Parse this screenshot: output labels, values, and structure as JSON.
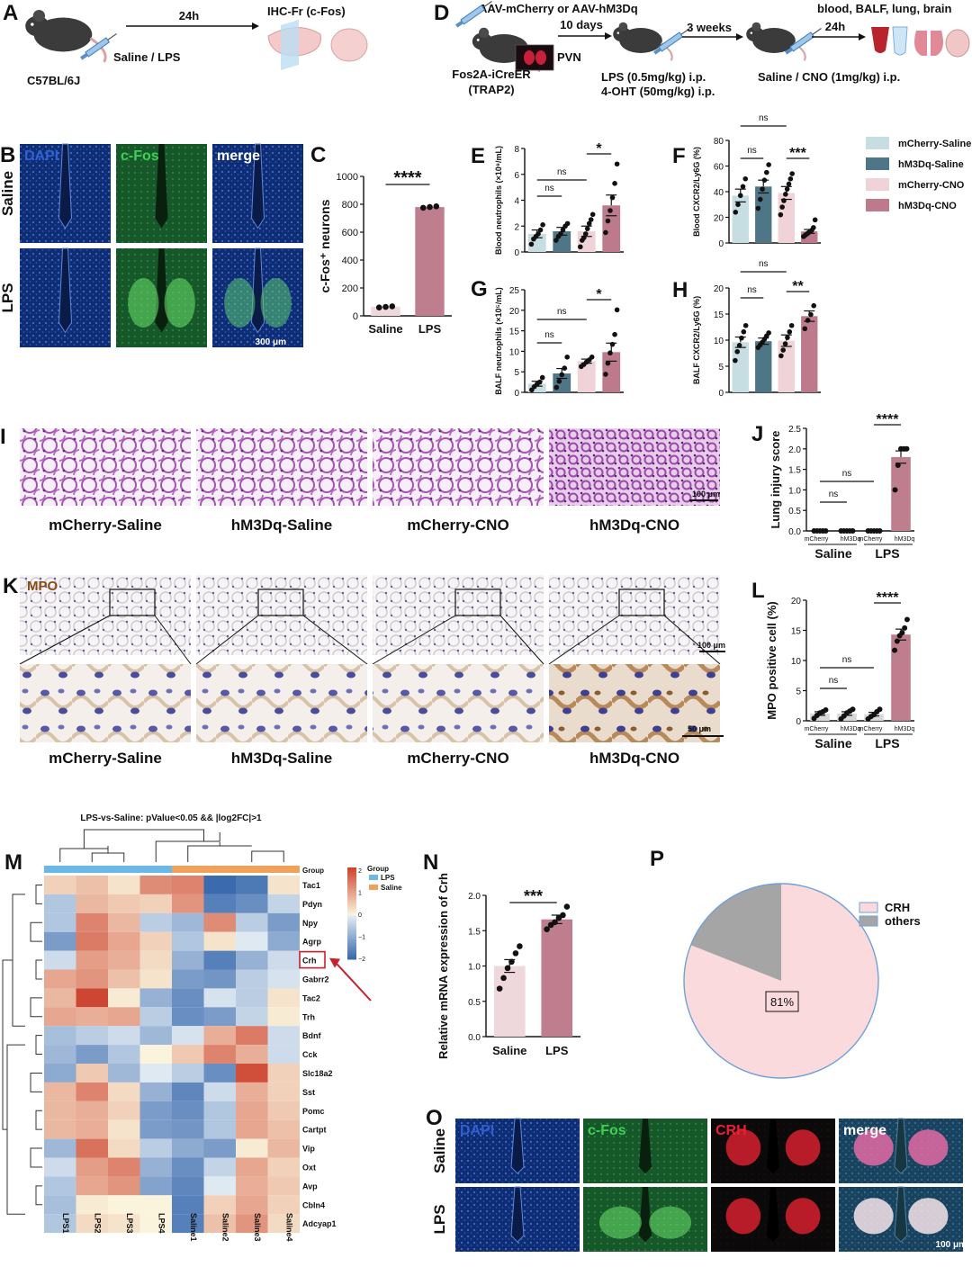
{
  "colors": {
    "mCherry_Saline": "#c6dde2",
    "hM3Dq_Saline": "#4e7687",
    "mCherry_CNO": "#efd3d8",
    "hM3Dq_CNO": "#bc7a8c",
    "saline_bar": "#eed8db",
    "lps_bar": "#bf7e8e",
    "micro_dapi": "#1a3f8f",
    "micro_cfos": "#1f6b2c",
    "micro_crh": "#b0121c",
    "he_stain": "#c084c4",
    "ihc_bg": "#ede6de",
    "pie_crh": "#fadadd",
    "pie_others": "#a5a5a5",
    "pie_border": "#6fa1d8",
    "arrow_red": "#c8202c"
  },
  "panels": {
    "A": {
      "label": "A",
      "timepoint": "24h",
      "strain": "C57BL/6J",
      "treatment": "Saline / LPS",
      "assay": "IHC-Fr (c-Fos)"
    },
    "D": {
      "label": "D",
      "virus": "AAV-mCherry or AAV-hM3Dq",
      "days": "10 days",
      "region": "PVN",
      "mouse_line_1": "Fos2A-iCreER",
      "mouse_line_2": "(TRAP2)",
      "weeks": "3 weeks",
      "tp": "24h",
      "readouts": "blood, BALF, lung, brain",
      "lps": "LPS (0.5mg/kg) i.p.",
      "oht": "4-OHT (50mg/kg) i.p.",
      "cno": "Saline / CNO (1mg/kg) i.p."
    },
    "B": {
      "label": "B",
      "cols": [
        "DAPI",
        "c-Fos",
        "merge"
      ],
      "rows": [
        "Saline",
        "LPS"
      ],
      "scale": "300 μm"
    },
    "I": {
      "label": "I",
      "captions": [
        "mCherry-Saline",
        "hM3Dq-Saline",
        "mCherry-CNO",
        "hM3Dq-CNO"
      ],
      "scale": "100 μm"
    },
    "K": {
      "label": "K",
      "stain": "MPO",
      "captions": [
        "mCherry-Saline",
        "hM3Dq-Saline",
        "mCherry-CNO",
        "hM3Dq-CNO"
      ],
      "scale_top": "100 μm",
      "scale_bottom": "50 μm"
    },
    "M": {
      "label": "M",
      "title": "LPS-vs-Saline: pValue<0.05 && |log2FC|>1",
      "genes": [
        "Tac1",
        "Pdyn",
        "Npy",
        "Agrp",
        "Crh",
        "Gabrr2",
        "Tac2",
        "Trh",
        "Bdnf",
        "Cck",
        "Slc18a2",
        "Sst",
        "Pomc",
        "Cartpt",
        "Vip",
        "Oxt",
        "Avp",
        "Cbln4",
        "Adcyap1"
      ],
      "samples": [
        "LPS1",
        "LPS2",
        "LPS3",
        "LPS4",
        "Saline1",
        "Saline2",
        "Saline3",
        "Saline4"
      ],
      "matrix": [
        [
          0.4,
          0.6,
          0.2,
          1.2,
          1.3,
          -1.9,
          -1.7,
          0.2
        ],
        [
          -0.6,
          0.7,
          0.5,
          0.4,
          1.1,
          -1.6,
          -1.4,
          -0.4
        ],
        [
          -0.6,
          1.3,
          0.7,
          -0.5,
          -0.8,
          1.2,
          -0.5,
          -1.2
        ],
        [
          -1.2,
          1.4,
          0.9,
          0.4,
          -0.6,
          0.2,
          -0.1,
          -1.0
        ],
        [
          -0.3,
          1.0,
          0.8,
          0.3,
          -0.9,
          -1.6,
          -0.9,
          -0.3
        ],
        [
          0.9,
          1.1,
          0.6,
          0.2,
          -1.2,
          -1.3,
          -0.5,
          -0.2
        ],
        [
          0.7,
          2.0,
          0.1,
          -0.9,
          -1.4,
          -0.2,
          -0.5,
          0.2
        ],
        [
          0.9,
          0.8,
          0.9,
          -0.5,
          -1.4,
          -1.2,
          -0.4,
          0.1
        ],
        [
          -0.7,
          -0.5,
          -0.3,
          -0.8,
          -0.2,
          0.8,
          1.4,
          -0.3
        ],
        [
          -0.8,
          -1.2,
          -0.6,
          0.0,
          0.5,
          1.3,
          0.8,
          -0.3
        ],
        [
          -1.0,
          0.5,
          -0.8,
          -0.1,
          -0.5,
          -1.4,
          1.9,
          0.4
        ],
        [
          0.7,
          1.3,
          0.3,
          -0.9,
          -1.5,
          -0.3,
          0.8,
          0.4
        ],
        [
          0.7,
          0.8,
          0.4,
          -1.2,
          -1.4,
          -0.6,
          0.9,
          0.5
        ],
        [
          0.7,
          0.8,
          0.2,
          -1.2,
          -1.3,
          -0.6,
          0.9,
          0.6
        ],
        [
          -0.8,
          1.5,
          0.3,
          -0.5,
          -1.0,
          -1.2,
          0.1,
          0.7
        ],
        [
          -0.3,
          1.0,
          1.3,
          -0.9,
          -1.4,
          -0.4,
          0.9,
          0.4
        ],
        [
          -0.6,
          0.9,
          1.1,
          -1.1,
          -1.5,
          -0.1,
          0.8,
          0.5
        ],
        [
          -0.7,
          0.1,
          0.0,
          0.0,
          -1.6,
          0.4,
          0.9,
          0.4
        ],
        [
          -0.6,
          0.3,
          0.2,
          0.0,
          -1.6,
          0.6,
          1.1,
          0.3
        ]
      ],
      "legend_group": "Group",
      "legend_items": [
        "LPS",
        "Saline"
      ],
      "colorbar_ticks": [
        "2",
        "1",
        "0",
        "−1",
        "−2"
      ],
      "group_row_label": "Group",
      "highlight_gene": "Crh"
    },
    "O": {
      "label": "O",
      "cols": [
        "DAPI",
        "c-Fos",
        "CRH",
        "merge"
      ],
      "rows": [
        "Saline",
        "LPS"
      ],
      "scale": "100 μm"
    }
  },
  "chart_data": [
    {
      "id": "C",
      "type": "bar",
      "categories": [
        "Saline",
        "LPS"
      ],
      "values": [
        65,
        780
      ],
      "points": [
        [
          60,
          64,
          68
        ],
        [
          775,
          780,
          785
        ]
      ],
      "ylabel": "c-Fos⁺ neurons",
      "ylim": [
        0,
        1000
      ],
      "yticks": [
        0,
        200,
        400,
        600,
        800,
        1000
      ],
      "sig": [
        {
          "from": 0,
          "to": 1,
          "text": "****"
        }
      ]
    },
    {
      "id": "E",
      "type": "bar",
      "categories": [
        "mCherry-Saline",
        "hM3Dq-Saline",
        "mCherry-CNO",
        "hM3Dq-CNO"
      ],
      "values": [
        1.4,
        1.6,
        1.6,
        3.6
      ],
      "sem": [
        0.3,
        0.3,
        0.4,
        0.8
      ],
      "points": [
        [
          0.6,
          1.0,
          1.2,
          1.4,
          1.7,
          2.1
        ],
        [
          0.9,
          1.2,
          1.4,
          1.7,
          2.0,
          2.2
        ],
        [
          0.4,
          0.9,
          1.1,
          1.4,
          1.8,
          2.2,
          2.5,
          2.9
        ],
        [
          1.5,
          2.4,
          3.2,
          4.2,
          5.3,
          6.8
        ]
      ],
      "ylabel": "Blood neutrophils (×10⁹/mL)",
      "ylim": [
        0,
        8
      ],
      "yticks": [
        0,
        2,
        4,
        6,
        8
      ],
      "sig": [
        {
          "from": 0,
          "to": 1,
          "text": "ns"
        },
        {
          "from": 0,
          "to": 2,
          "text": "ns"
        },
        {
          "from": 2,
          "to": 3,
          "text": "*"
        }
      ]
    },
    {
      "id": "F",
      "type": "bar",
      "categories": [
        "mCherry-Saline",
        "hM3Dq-Saline",
        "mCherry-CNO",
        "hM3Dq-CNO"
      ],
      "values": [
        37,
        44,
        39,
        9
      ],
      "sem": [
        5,
        5,
        5,
        1.5
      ],
      "points": [
        [
          24,
          30,
          37,
          44,
          50
        ],
        [
          27,
          34,
          42,
          49,
          55,
          61
        ],
        [
          22,
          28,
          33,
          38,
          42,
          46,
          50,
          54
        ],
        [
          5,
          6,
          7,
          8,
          9,
          10,
          12,
          18
        ]
      ],
      "ylabel": "Blood CXCR2/Ly6G (%)",
      "ylim": [
        0,
        80
      ],
      "yticks": [
        0,
        20,
        40,
        60,
        80
      ],
      "sig": [
        {
          "from": 0,
          "to": 1,
          "text": "ns"
        },
        {
          "from": 2,
          "to": 3,
          "text": "***"
        },
        {
          "from": 0,
          "to": 2,
          "text": "ns"
        }
      ]
    },
    {
      "id": "G",
      "type": "bar",
      "categories": [
        "mCherry-Saline",
        "hM3Dq-Saline",
        "mCherry-CNO",
        "hM3Dq-CNO"
      ],
      "values": [
        2.1,
        4.6,
        7.6,
        9.8
      ],
      "sem": [
        0.6,
        1.2,
        0.5,
        2.2
      ],
      "points": [
        [
          0.6,
          1.4,
          2.0,
          2.5,
          3.6
        ],
        [
          1.2,
          2.7,
          4.3,
          5.9,
          8.6
        ],
        [
          6.3,
          6.8,
          7.4,
          7.9,
          8.6
        ],
        [
          4.4,
          7.1,
          9.6,
          11.7,
          14.1,
          20.1
        ]
      ],
      "ylabel": "BALF neutrophils (×10⁵/mL)",
      "ylim": [
        0,
        25
      ],
      "yticks": [
        0,
        5,
        10,
        15,
        20,
        25
      ],
      "sig": [
        {
          "from": 0,
          "to": 1,
          "text": "ns"
        },
        {
          "from": 0,
          "to": 2,
          "text": "ns"
        },
        {
          "from": 2,
          "to": 3,
          "text": "*"
        }
      ]
    },
    {
      "id": "H",
      "type": "bar",
      "categories": [
        "mCherry-Saline",
        "hM3Dq-Saline",
        "mCherry-CNO",
        "hM3Dq-CNO"
      ],
      "values": [
        9.6,
        9.8,
        9.9,
        14.6
      ],
      "sem": [
        1.0,
        0.6,
        1.1,
        1.0
      ],
      "points": [
        [
          6.1,
          7.8,
          9.0,
          10.4,
          11.6,
          12.8
        ],
        [
          8.6,
          9.1,
          9.6,
          10.2,
          10.8,
          11.4
        ],
        [
          7.0,
          8.1,
          9.3,
          10.5,
          11.6,
          12.8
        ],
        [
          12.2,
          13.8,
          14.9,
          16.6
        ]
      ],
      "ylabel": "BALF CXCR2/Ly6G (%)",
      "ylim": [
        0,
        20
      ],
      "yticks": [
        0,
        5,
        10,
        15,
        20
      ],
      "sig": [
        {
          "from": 0,
          "to": 1,
          "text": "ns"
        },
        {
          "from": 2,
          "to": 3,
          "text": "**"
        },
        {
          "from": 0,
          "to": 2,
          "text": "ns"
        }
      ]
    },
    {
      "id": "J",
      "type": "bar",
      "categories": [
        "mCherry",
        "hM3Dq",
        "mCherry",
        "hM3Dq"
      ],
      "groups": [
        "Saline",
        "LPS"
      ],
      "values": [
        0,
        0,
        0,
        1.8
      ],
      "sem": [
        0,
        0,
        0,
        0.15
      ],
      "points": [
        [
          0,
          0,
          0,
          0,
          0
        ],
        [
          0,
          0,
          0,
          0,
          0
        ],
        [
          0,
          0,
          0,
          0,
          0
        ],
        [
          1.0,
          1.6,
          2.0,
          2.0,
          2.0
        ]
      ],
      "ylabel": "Lung injury score",
      "ylim": [
        0,
        2.5
      ],
      "yticks": [
        0.0,
        0.5,
        1.0,
        1.5,
        2.0,
        2.5
      ],
      "sig": [
        {
          "from": 0,
          "to": 1,
          "text": "ns"
        },
        {
          "from": 0,
          "to": 2,
          "text": "ns"
        },
        {
          "from": 2,
          "to": 3,
          "text": "****"
        }
      ]
    },
    {
      "id": "L",
      "type": "bar",
      "categories": [
        "mCherry",
        "hM3Dq",
        "mCherry",
        "hM3Dq"
      ],
      "groups": [
        "Saline",
        "LPS"
      ],
      "values": [
        1.2,
        1.2,
        1.1,
        14.3
      ],
      "sem": [
        0.3,
        0.3,
        0.3,
        0.9
      ],
      "points": [
        [
          0.4,
          0.9,
          1.3,
          1.5,
          1.8
        ],
        [
          0.3,
          0.8,
          1.3,
          1.6,
          1.9
        ],
        [
          0.3,
          0.7,
          1.0,
          1.5,
          1.9
        ],
        [
          11.7,
          13.2,
          14.1,
          14.6,
          15.4,
          16.8
        ]
      ],
      "ylabel": "MPO positive cell (%)",
      "ylim": [
        0,
        20
      ],
      "yticks": [
        0,
        5,
        10,
        15,
        20
      ],
      "sig": [
        {
          "from": 0,
          "to": 1,
          "text": "ns"
        },
        {
          "from": 0,
          "to": 2,
          "text": "ns"
        },
        {
          "from": 2,
          "to": 3,
          "text": "****"
        }
      ]
    },
    {
      "id": "N",
      "type": "bar",
      "categories": [
        "Saline",
        "LPS"
      ],
      "values": [
        1.0,
        1.66
      ],
      "sem": [
        0.09,
        0.06
      ],
      "points": [
        [
          0.68,
          0.83,
          0.97,
          1.06,
          1.18,
          1.28
        ],
        [
          1.52,
          1.58,
          1.62,
          1.68,
          1.72,
          1.84
        ]
      ],
      "ylabel": "Relative mRNA expression of Crh",
      "ylim": [
        0,
        2.0
      ],
      "yticks": [
        0.0,
        0.5,
        1.0,
        1.5,
        2.0
      ],
      "sig": [
        {
          "from": 0,
          "to": 1,
          "text": "***"
        }
      ]
    },
    {
      "id": "P",
      "type": "pie",
      "categories": [
        "CRH",
        "others"
      ],
      "values": [
        81,
        19
      ],
      "label": "81%"
    }
  ],
  "legend": {
    "items": [
      "mCherry-Saline",
      "hM3Dq-Saline",
      "mCherry-CNO",
      "hM3Dq-CNO"
    ]
  }
}
